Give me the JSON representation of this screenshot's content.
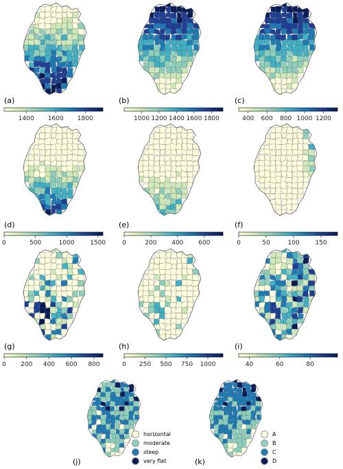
{
  "colors": {
    "ramp": [
      "#ffffe0",
      "#cfe9b8",
      "#8cd0bc",
      "#40b0c4",
      "#1d7ab4",
      "#1e3f93",
      "#081d58"
    ],
    "outline": "#555555"
  },
  "map_panels": [
    {
      "id": "a",
      "label": "(a)",
      "min": 1250,
      "max": 1920,
      "ticks": [
        "1400",
        "1600",
        "1800"
      ],
      "tick_values": [
        1400,
        1600,
        1800
      ],
      "pattern": "south-high"
    },
    {
      "id": "b",
      "label": "(b)",
      "min": 800,
      "max": 1930,
      "ticks": [
        "1000",
        "1200",
        "1400",
        "1600",
        "1800"
      ],
      "tick_values": [
        1000,
        1200,
        1400,
        1600,
        1800
      ],
      "pattern": "north-high"
    },
    {
      "id": "c",
      "label": "(c)",
      "min": 300,
      "max": 1350,
      "ticks": [
        "400",
        "600",
        "800",
        "1000",
        "1200"
      ],
      "tick_values": [
        400,
        600,
        800,
        1000,
        1200
      ],
      "pattern": "north-high"
    },
    {
      "id": "d",
      "label": "(d)",
      "min": 0,
      "max": 1580,
      "ticks": [
        "0",
        "500",
        "1000",
        "1500"
      ],
      "tick_values": [
        0,
        500,
        1000,
        1500
      ],
      "pattern": "south-mid"
    },
    {
      "id": "e",
      "label": "(e)",
      "min": 0,
      "max": 740,
      "ticks": [
        "0",
        "200",
        "400",
        "600"
      ],
      "tick_values": [
        0,
        200,
        400,
        600
      ],
      "pattern": "south-low"
    },
    {
      "id": "f",
      "label": "(f)",
      "min": 0,
      "max": 180,
      "ticks": [
        "0",
        "50",
        "100",
        "150"
      ],
      "tick_values": [
        0,
        50,
        100,
        150
      ],
      "pattern": "east-high"
    },
    {
      "id": "g",
      "label": "(g)",
      "min": 0,
      "max": 880,
      "ticks": [
        "0",
        "200",
        "400",
        "600",
        "800"
      ],
      "tick_values": [
        0,
        200,
        400,
        600,
        800
      ],
      "pattern": "mixed"
    },
    {
      "id": "h",
      "label": "(h)",
      "min": 0,
      "max": 1180,
      "ticks": [
        "0",
        "250",
        "500",
        "750",
        "1000"
      ],
      "tick_values": [
        0,
        250,
        500,
        750,
        1000
      ],
      "pattern": "sparse"
    },
    {
      "id": "i",
      "label": "(i)",
      "min": 33,
      "max": 98,
      "ticks": [
        "40",
        "60",
        "80"
      ],
      "tick_values": [
        40,
        60,
        80
      ],
      "pattern": "broad"
    }
  ],
  "category_panels": [
    {
      "id": "j",
      "label": "(j)",
      "pattern": "cat-j",
      "legend": [
        {
          "name": "horizontal",
          "color": "#ffffe0"
        },
        {
          "name": "moderate",
          "color": "#8cd0bc"
        },
        {
          "name": "steep",
          "color": "#1d7ab4"
        },
        {
          "name": "very flat",
          "color": "#081d58"
        }
      ]
    },
    {
      "id": "k",
      "label": "(k)",
      "pattern": "cat-k",
      "legend": [
        {
          "name": "A",
          "color": "#ffffe0"
        },
        {
          "name": "B",
          "color": "#8cd0bc"
        },
        {
          "name": "C",
          "color": "#1d7ab4"
        },
        {
          "name": "D",
          "color": "#081d58"
        }
      ]
    }
  ]
}
